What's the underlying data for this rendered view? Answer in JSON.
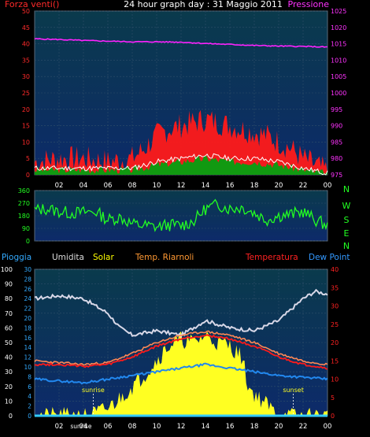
{
  "header": {
    "title": "24 hour graph day : 31 Maggio 2011",
    "left_label": "Forza venti()",
    "right_label": "Pressione"
  },
  "x_ticks": [
    "02",
    "04",
    "06",
    "08",
    "10",
    "12",
    "14",
    "16",
    "18",
    "20",
    "22",
    "00"
  ],
  "compass": [
    "N",
    "W",
    "S",
    "E",
    "N"
  ],
  "legend": [
    {
      "label": "Pioggia",
      "color": "#33aaff"
    },
    {
      "label": "Umidita",
      "color": "#dddddd"
    },
    {
      "label": "Solar",
      "color": "#ffff00"
    },
    {
      "label": "Temp. Riarnoli",
      "color": "#ff9933"
    },
    {
      "label": "Temperatura",
      "color": "#ff2222"
    },
    {
      "label": "Dew Point",
      "color": "#3399ff"
    }
  ],
  "annotations": {
    "sunrise": "sunrise",
    "sunset": "sunset",
    "sunrise_tick": "sunrise"
  },
  "chart_data": [
    {
      "type": "line",
      "name": "wind-pressure",
      "x_unit": "hour",
      "left_axis": {
        "ticks": [
          0,
          5,
          10,
          15,
          20,
          25,
          30,
          35,
          40,
          45,
          50
        ],
        "range": [
          0,
          50
        ]
      },
      "right_axis": {
        "ticks": [
          975,
          980,
          985,
          990,
          995,
          1000,
          1005,
          1010,
          1015,
          1020,
          1025
        ],
        "range": [
          975,
          1025
        ]
      },
      "grid": true,
      "series": [
        {
          "color": "#ff00ff",
          "axis": "right",
          "x": [
            0,
            2,
            4,
            6,
            8,
            10,
            12,
            14,
            16,
            18,
            20,
            22,
            24
          ],
          "values": [
            1016.5,
            1016.3,
            1016.0,
            1015.8,
            1015.6,
            1015.6,
            1015.5,
            1015.1,
            1014.8,
            1014.5,
            1014.3,
            1014.2,
            1014.0
          ]
        },
        {
          "color": "#ff0000",
          "axis": "left",
          "x": [
            0,
            2,
            4,
            6,
            8,
            9,
            10,
            11,
            12,
            13,
            14,
            15,
            16,
            17,
            18,
            19,
            20,
            21,
            22,
            23,
            24
          ],
          "values": [
            4,
            5,
            5,
            4,
            5,
            8,
            12,
            14,
            15,
            16,
            17,
            16,
            15,
            14,
            13,
            12,
            10,
            8,
            5,
            3,
            1
          ]
        },
        {
          "color": "#ffffff",
          "axis": "left",
          "x": [
            0,
            2,
            4,
            6,
            8,
            10,
            12,
            14,
            16,
            18,
            20,
            22,
            24
          ],
          "values": [
            2,
            2,
            2,
            2,
            2,
            4,
            5,
            6,
            5,
            5,
            4,
            2,
            0.5
          ]
        },
        {
          "color": "#00aa00",
          "axis": "left",
          "x": [
            0,
            2,
            4,
            6,
            8,
            10,
            12,
            14,
            16,
            18,
            20,
            22,
            24
          ],
          "values": [
            1.5,
            1.5,
            1.5,
            1.5,
            1.5,
            3,
            4,
            5,
            4,
            4,
            3,
            1.5,
            0.3
          ]
        }
      ]
    },
    {
      "type": "line",
      "name": "wind-direction",
      "x_unit": "hour",
      "left_axis": {
        "ticks": [
          0,
          90,
          180,
          270,
          360
        ],
        "range": [
          0,
          360
        ]
      },
      "series": [
        {
          "color": "#00ff00",
          "x": [
            0,
            1,
            2,
            3,
            4,
            5,
            6,
            7,
            8,
            9,
            10,
            11,
            12,
            13,
            14,
            15,
            16,
            17,
            18,
            19,
            20,
            21,
            22,
            23,
            24
          ],
          "values": [
            220,
            230,
            210,
            200,
            205,
            210,
            150,
            170,
            120,
            110,
            100,
            115,
            110,
            140,
            230,
            260,
            230,
            240,
            200,
            150,
            180,
            190,
            210,
            150,
            110
          ]
        }
      ]
    },
    {
      "type": "line",
      "name": "temp-humidity-solar",
      "x_unit": "hour",
      "left_axis": {
        "ticks": [
          0,
          10,
          20,
          30,
          40,
          50,
          60,
          70,
          80,
          90,
          100
        ],
        "range": [
          0,
          100
        ]
      },
      "left_inner_axis": {
        "ticks": [
          0,
          2,
          4,
          6,
          8,
          10,
          12,
          14,
          16,
          18,
          20,
          22,
          24,
          26,
          28,
          30
        ]
      },
      "right_axis": {
        "ticks": [
          0,
          5,
          10,
          15,
          20,
          25,
          30,
          35,
          40
        ],
        "range": [
          0,
          40
        ]
      },
      "grid": true,
      "series": [
        {
          "color": "#ffff00",
          "x": [
            0,
            4.5,
            6,
            7,
            8,
            9,
            10,
            11,
            12,
            13,
            14,
            15,
            16,
            17,
            17.5,
            18,
            19,
            20,
            24
          ],
          "values": [
            0,
            0,
            5,
            12,
            20,
            28,
            38,
            48,
            52,
            50,
            55,
            50,
            48,
            40,
            20,
            15,
            8,
            0,
            0
          ]
        },
        {
          "color": "#dddddd",
          "x": [
            0,
            2,
            4,
            6,
            7,
            8,
            10,
            12,
            14,
            16,
            18,
            20,
            22,
            23,
            24
          ],
          "values": [
            80,
            82,
            80,
            70,
            60,
            55,
            58,
            55,
            65,
            60,
            58,
            65,
            80,
            85,
            83
          ]
        },
        {
          "color": "#ff2222",
          "x": [
            0,
            2,
            4,
            6,
            8,
            10,
            12,
            14,
            16,
            18,
            20,
            22,
            24
          ],
          "values": [
            14,
            14,
            13.5,
            14,
            16,
            19,
            21,
            22,
            21,
            19,
            16,
            14,
            13
          ]
        },
        {
          "color": "#ff9933",
          "x": [
            0,
            2,
            4,
            6,
            8,
            10,
            12,
            14,
            16,
            18,
            20,
            22,
            24
          ],
          "values": [
            15,
            14.5,
            14,
            14.5,
            17,
            20,
            22,
            23,
            22,
            20,
            17,
            15,
            14
          ]
        },
        {
          "color": "#3399ff",
          "x": [
            0,
            2,
            4,
            6,
            8,
            10,
            12,
            14,
            16,
            18,
            20,
            22,
            24
          ],
          "values": [
            10,
            9.5,
            9,
            10,
            11,
            12,
            13,
            14,
            13,
            12,
            11,
            10.5,
            10
          ]
        },
        {
          "color": "#33aaff",
          "x": [
            0,
            24
          ],
          "values": [
            0,
            0
          ]
        }
      ]
    }
  ]
}
